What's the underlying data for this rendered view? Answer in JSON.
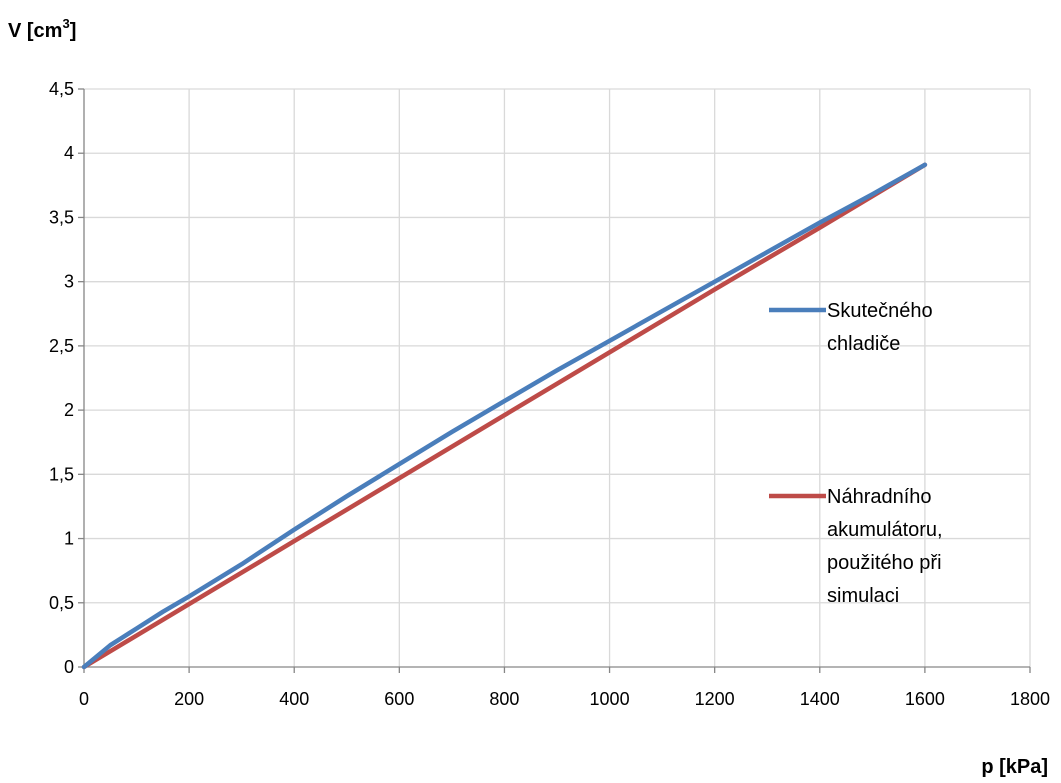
{
  "chart_data": {
    "type": "line",
    "ylabel": "V [cm",
    "ylabel_sup": "3",
    "ylabel_end": "]",
    "xlabel": "p [kPa]",
    "xlim": [
      0,
      1800
    ],
    "ylim": [
      0,
      4.5
    ],
    "x_ticks": [
      0,
      200,
      400,
      600,
      800,
      1000,
      1200,
      1400,
      1600,
      1800
    ],
    "x_tick_labels": [
      "0",
      "200",
      "400",
      "600",
      "800",
      "1000",
      "1200",
      "1400",
      "1600",
      "1800"
    ],
    "y_ticks": [
      0,
      0.5,
      1,
      1.5,
      2,
      2.5,
      3,
      3.5,
      4,
      4.5
    ],
    "y_tick_labels": [
      "0",
      "0,5",
      "1",
      "1,5",
      "2",
      "2,5",
      "3",
      "3,5",
      "4",
      "4,5"
    ],
    "grid": true,
    "legend_position": "right",
    "series": [
      {
        "name": "Skutečného chladiče",
        "legend_lines": [
          "Skutečného",
          "chladiče"
        ],
        "color": "#4a7ebb",
        "x": [
          0,
          50,
          100,
          150,
          200,
          300,
          400,
          500,
          600,
          700,
          800,
          900,
          1000,
          1100,
          1200,
          1300,
          1400,
          1500,
          1600
        ],
        "y": [
          0,
          0.17,
          0.3,
          0.43,
          0.55,
          0.8,
          1.07,
          1.33,
          1.58,
          1.83,
          2.07,
          2.31,
          2.54,
          2.77,
          3.0,
          3.23,
          3.46,
          3.68,
          3.91
        ]
      },
      {
        "name": "Náhradního akumulátoru, použitého při simulaci",
        "legend_lines": [
          "Náhradního",
          "akumulátoru,",
          "použitého při",
          "simulaci"
        ],
        "color": "#be4b48",
        "x": [
          0,
          200,
          400,
          600,
          800,
          1000,
          1200,
          1400,
          1600
        ],
        "y": [
          0,
          0.49,
          0.98,
          1.47,
          1.96,
          2.45,
          2.94,
          3.42,
          3.91
        ]
      }
    ]
  }
}
